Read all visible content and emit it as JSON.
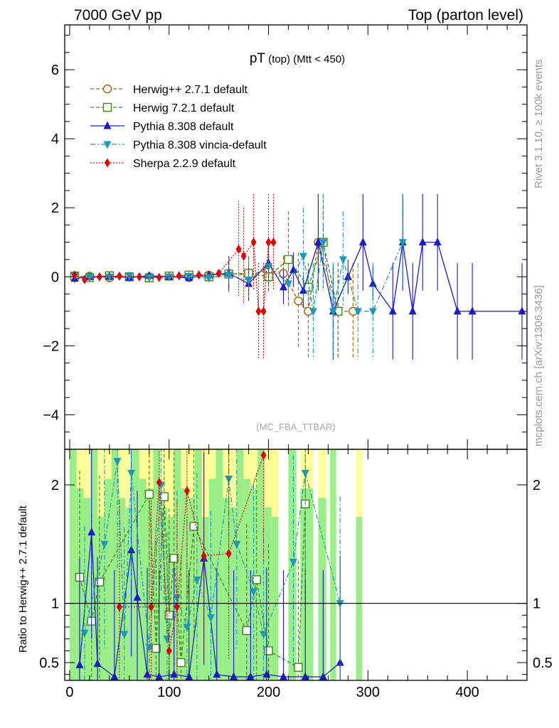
{
  "header": {
    "left_title": "7000 GeV pp",
    "right_title": "Top (parton level)"
  },
  "plot": {
    "title_main": "pT",
    "title_sub": " (top) (Mtt < 450)",
    "watermark": "(MC_FBA_TTBAR)",
    "side_text_top": "Rivet 3.1.10, ≥ 100k events",
    "side_text_bottom": "mcplots.cern.ch [arXiv:1306.3436]",
    "ratio_ylabel": "Ratio to Herwig++ 2.7.1 default"
  },
  "colors": {
    "herwigpp": "#b35900",
    "herwig7": "#3a8a10",
    "pythia": "#1a1acc",
    "vincia": "#1a9ab5",
    "sherpa": "#e00000",
    "band_green": "#99ee88",
    "band_yellow": "#ffff99"
  },
  "chart_data": [
    {
      "type": "scatter",
      "panel": "main",
      "title": "pT (top) (Mtt < 450)",
      "xlim": [
        -5,
        460
      ],
      "ylim": [
        -5,
        7.3
      ],
      "yticks": [
        -4,
        -2,
        0,
        2,
        4,
        6
      ],
      "legend_position": "top-left",
      "series": [
        {
          "name": "Herwig++ 2.7.1 default",
          "style": "open-circle dashed",
          "x": [
            5,
            20,
            40,
            60,
            80,
            100,
            120,
            140,
            160,
            180,
            200,
            215,
            230,
            240,
            250,
            270,
            285
          ],
          "y": [
            0.0,
            0.02,
            -0.03,
            0.01,
            0.0,
            0.02,
            -0.02,
            0.05,
            0.1,
            0.05,
            0.2,
            0.1,
            -0.7,
            -1.0,
            1.0,
            -1.0,
            -1.0
          ]
        },
        {
          "name": "Herwig 7.2.1 default",
          "style": "open-square dashed",
          "x": [
            5,
            20,
            40,
            60,
            80,
            100,
            120,
            140,
            160,
            180,
            200,
            220,
            240,
            255,
            270
          ],
          "y": [
            0.02,
            -0.02,
            0.03,
            0.0,
            -0.03,
            0.02,
            0.05,
            0.0,
            0.08,
            0.1,
            0.0,
            0.5,
            -0.3,
            1.0,
            -1.0
          ]
        },
        {
          "name": "Pythia 8.308 default",
          "style": "filled-triangle-up solid",
          "x": [
            5,
            20,
            40,
            60,
            80,
            100,
            120,
            140,
            160,
            180,
            200,
            215,
            225,
            235,
            250,
            265,
            280,
            295,
            305,
            325,
            335,
            345,
            355,
            370,
            390,
            405,
            455
          ],
          "y": [
            -0.05,
            0.0,
            0.02,
            -0.02,
            0.03,
            0.0,
            -0.03,
            0.05,
            0.1,
            -0.2,
            0.4,
            -0.3,
            0.2,
            -0.4,
            1.0,
            -1.0,
            0.0,
            1.0,
            -0.2,
            -1.0,
            1.0,
            -1.0,
            1.0,
            1.0,
            -1.0,
            -1.0,
            -1.0
          ]
        },
        {
          "name": "Pythia 8.308 vincia-default",
          "style": "filled-triangle-down dash-dot",
          "x": [
            5,
            20,
            40,
            60,
            80,
            100,
            120,
            140,
            160,
            180,
            200,
            220,
            235,
            245,
            255,
            265,
            275,
            290,
            305,
            335
          ],
          "y": [
            0.03,
            -0.02,
            0.0,
            0.02,
            -0.02,
            0.0,
            0.02,
            -0.03,
            0.05,
            -0.1,
            0.3,
            -0.2,
            0.6,
            -1.0,
            1.0,
            -1.0,
            0.5,
            -1.0,
            -1.0,
            1.0
          ]
        },
        {
          "name": "Sherpa 2.2.9 default",
          "style": "filled-diamond dotted",
          "x": [
            5,
            15,
            30,
            50,
            70,
            90,
            110,
            130,
            150,
            170,
            175,
            185,
            190,
            195,
            200,
            205
          ],
          "y": [
            0.05,
            -0.08,
            0.0,
            0.02,
            0.0,
            -0.02,
            0.03,
            0.05,
            0.1,
            0.8,
            0.6,
            1.0,
            -1.0,
            -1.0,
            1.0,
            1.0
          ]
        }
      ]
    },
    {
      "type": "scatter",
      "panel": "ratio",
      "ylabel": "Ratio to Herwig++ 2.7.1 default",
      "xlim": [
        -5,
        460
      ],
      "ylim": [
        0.35,
        2.3
      ],
      "yticks": [
        0.5,
        1,
        2
      ],
      "xticks": [
        0,
        100,
        200,
        300,
        400
      ],
      "reference_line": 1,
      "series": [
        {
          "name": "Herwig 7.2.1 default",
          "x": [
            10,
            22,
            30,
            80,
            87,
            95,
            100,
            105,
            112,
            125,
            178,
            188,
            200,
            230,
            237
          ],
          "y": [
            1.22,
            0.85,
            1.18,
            1.92,
            0.62,
            1.9,
            0.9,
            1.38,
            0.5,
            1.65,
            0.77,
            1.2,
            0.6,
            0.46,
            1.84
          ]
        },
        {
          "name": "Pythia 8.308 default",
          "x": [
            10,
            22,
            28,
            45,
            62,
            68,
            78,
            90,
            105,
            120,
            135,
            148,
            165,
            182,
            198,
            215,
            237,
            255,
            272
          ],
          "y": [
            0.48,
            1.6,
            0.49,
            0.38,
            1.45,
            1.05,
            0.4,
            0.38,
            0.4,
            0.38,
            1.38,
            0.4,
            0.38,
            0.38,
            0.4,
            0.38,
            0.38,
            0.38,
            0.5
          ]
        },
        {
          "name": "Pythia 8.308 vincia-default",
          "x": [
            15,
            35,
            48,
            55,
            62,
            80,
            92,
            98,
            108,
            118,
            128,
            142,
            160,
            168,
            185,
            195,
            225,
            237,
            272
          ],
          "y": [
            0.75,
            1.5,
            2.2,
            0.74,
            2.1,
            0.63,
            2.0,
            0.7,
            1.05,
            0.8,
            1.2,
            0.88,
            2.05,
            1.5,
            1.1,
            0.74,
            1.35,
            2.1,
            1.0
          ]
        },
        {
          "name": "Sherpa 2.2.9 default",
          "x": [
            50,
            82,
            90,
            100,
            108,
            118,
            135,
            160,
            195
          ],
          "y": [
            0.97,
            0.97,
            2.02,
            0.6,
            0.97,
            1.95,
            1.4,
            1.42,
            2.25
          ]
        }
      ]
    }
  ]
}
